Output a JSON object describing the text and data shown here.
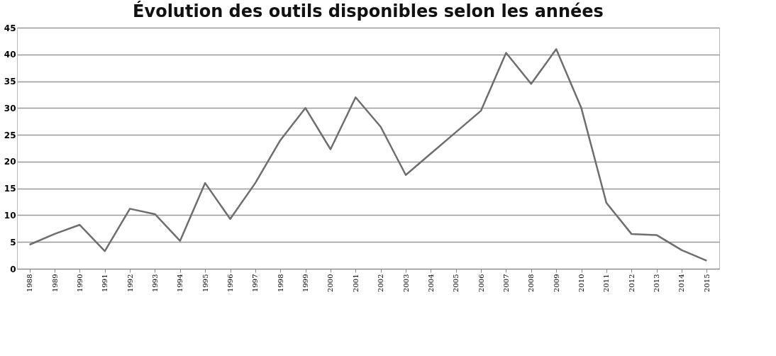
{
  "chart_data": {
    "type": "line",
    "title": "Évolution des outils disponibles selon les années",
    "categories": [
      "1988",
      "1989",
      "1990",
      "1991",
      "1992",
      "1993",
      "1994",
      "1995",
      "1996",
      "1997",
      "1998",
      "1999",
      "2000",
      "2001",
      "2002",
      "2003",
      "2004",
      "2005",
      "2006",
      "2007",
      "2008",
      "2009",
      "2010",
      "2011",
      "2012",
      "2013",
      "2014",
      "2015"
    ],
    "series": [
      {
        "color": "#6e6e6e",
        "values": [
          4.5,
          6.5,
          8.2,
          3.3,
          11.2,
          10.2,
          5.2,
          16,
          9.3,
          16,
          24,
          30,
          22.3,
          32,
          26.5,
          17.5,
          21.5,
          25.5,
          29.5,
          40.3,
          34.5,
          41,
          30,
          12.3,
          6.5,
          6.3,
          3.5,
          1.5
        ]
      }
    ],
    "ylim": [
      0,
      45
    ],
    "yticks": [
      0,
      5,
      10,
      15,
      20,
      25,
      30,
      35,
      40,
      45
    ],
    "grid": "y",
    "legend": false,
    "marker": "none",
    "line_style": "solid"
  }
}
